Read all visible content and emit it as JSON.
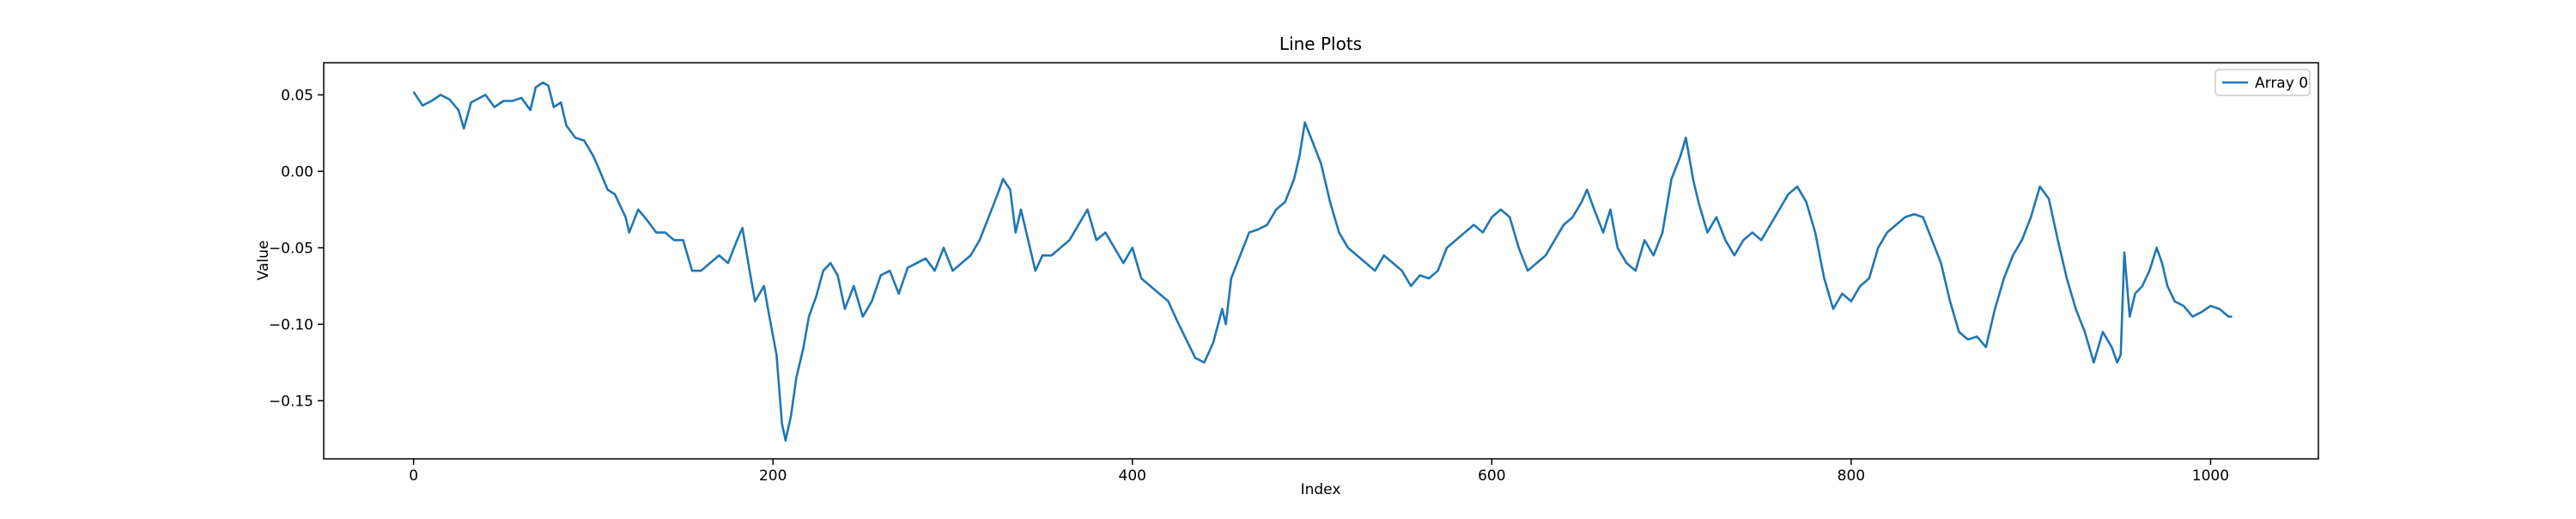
{
  "chart_data": {
    "type": "line",
    "title": "Line Plots",
    "xlabel": "Index",
    "ylabel": "Value",
    "xlim": [
      -50,
      1060
    ],
    "ylim": [
      -0.188,
      0.071
    ],
    "xticks": [
      0,
      200,
      400,
      600,
      800,
      1000
    ],
    "yticks": [
      {
        "value": -0.15,
        "label": "−0.15"
      },
      {
        "value": -0.1,
        "label": "−0.10"
      },
      {
        "value": -0.05,
        "label": "−0.05"
      },
      {
        "value": 0,
        "label": "0.00"
      },
      {
        "value": 0.05,
        "label": "0.05"
      }
    ],
    "legend": "upper right",
    "grid": false,
    "x": [
      0,
      5,
      10,
      15,
      20,
      25,
      28,
      32,
      40,
      45,
      50,
      55,
      60,
      65,
      68,
      72,
      75,
      78,
      82,
      85,
      90,
      95,
      100,
      103,
      108,
      112,
      118,
      120,
      125,
      130,
      135,
      140,
      145,
      150,
      155,
      160,
      165,
      170,
      175,
      180,
      183,
      187,
      190,
      195,
      198,
      202,
      205,
      207,
      210,
      213,
      217,
      220,
      224,
      228,
      232,
      236,
      240,
      245,
      250,
      255,
      260,
      265,
      270,
      275,
      280,
      285,
      290,
      295,
      300,
      305,
      310,
      315,
      320,
      325,
      328,
      332,
      335,
      338,
      342,
      346,
      350,
      355,
      360,
      365,
      370,
      375,
      380,
      385,
      390,
      395,
      400,
      405,
      410,
      415,
      420,
      425,
      430,
      435,
      440,
      445,
      450,
      452,
      455,
      460,
      465,
      470,
      475,
      480,
      485,
      490,
      493,
      496,
      500,
      505,
      510,
      515,
      520,
      525,
      530,
      535,
      540,
      545,
      550,
      555,
      560,
      565,
      570,
      575,
      580,
      585,
      590,
      595,
      600,
      605,
      610,
      615,
      620,
      625,
      630,
      635,
      640,
      645,
      650,
      653,
      657,
      662,
      666,
      670,
      675,
      680,
      685,
      690,
      695,
      700,
      705,
      708,
      712,
      715,
      720,
      725,
      730,
      735,
      740,
      745,
      750,
      755,
      760,
      765,
      770,
      775,
      780,
      785,
      790,
      795,
      800,
      805,
      810,
      815,
      820,
      825,
      830,
      835,
      840,
      845,
      850,
      855,
      860,
      865,
      870,
      875,
      880,
      885,
      890,
      895,
      900,
      905,
      910,
      915,
      920,
      925,
      930,
      935,
      940,
      945,
      948,
      950,
      952,
      955,
      958,
      962,
      966,
      970,
      973,
      976,
      980,
      985,
      990,
      995,
      1000,
      1005,
      1010,
      1012
    ],
    "series": [
      {
        "name": "Array 0",
        "color": "#1f77b4",
        "values": [
          0.052,
          0.043,
          0.046,
          0.05,
          0.047,
          0.04,
          0.028,
          0.045,
          0.05,
          0.042,
          0.046,
          0.046,
          0.048,
          0.04,
          0.055,
          0.058,
          0.056,
          0.042,
          0.045,
          0.03,
          0.022,
          0.02,
          0.01,
          0.002,
          -0.012,
          -0.015,
          -0.03,
          -0.04,
          -0.025,
          -0.032,
          -0.04,
          -0.04,
          -0.045,
          -0.045,
          -0.065,
          -0.065,
          -0.06,
          -0.055,
          -0.06,
          -0.045,
          -0.037,
          -0.065,
          -0.085,
          -0.075,
          -0.095,
          -0.12,
          -0.165,
          -0.176,
          -0.16,
          -0.135,
          -0.115,
          -0.095,
          -0.082,
          -0.065,
          -0.06,
          -0.068,
          -0.09,
          -0.075,
          -0.095,
          -0.085,
          -0.068,
          -0.065,
          -0.08,
          -0.063,
          -0.06,
          -0.057,
          -0.065,
          -0.05,
          -0.065,
          -0.06,
          -0.055,
          -0.045,
          -0.03,
          -0.015,
          -0.005,
          -0.012,
          -0.04,
          -0.025,
          -0.045,
          -0.065,
          -0.055,
          -0.055,
          -0.05,
          -0.045,
          -0.035,
          -0.025,
          -0.045,
          -0.04,
          -0.05,
          -0.06,
          -0.05,
          -0.07,
          -0.075,
          -0.08,
          -0.085,
          -0.098,
          -0.11,
          -0.122,
          -0.125,
          -0.112,
          -0.09,
          -0.1,
          -0.07,
          -0.055,
          -0.04,
          -0.038,
          -0.035,
          -0.025,
          -0.02,
          -0.005,
          0.01,
          0.032,
          0.02,
          0.005,
          -0.02,
          -0.04,
          -0.05,
          -0.055,
          -0.06,
          -0.065,
          -0.055,
          -0.06,
          -0.065,
          -0.075,
          -0.068,
          -0.07,
          -0.065,
          -0.05,
          -0.045,
          -0.04,
          -0.035,
          -0.04,
          -0.03,
          -0.025,
          -0.03,
          -0.05,
          -0.065,
          -0.06,
          -0.055,
          -0.045,
          -0.035,
          -0.03,
          -0.02,
          -0.012,
          -0.025,
          -0.04,
          -0.025,
          -0.05,
          -0.06,
          -0.065,
          -0.045,
          -0.055,
          -0.04,
          -0.005,
          0.01,
          0.022,
          -0.005,
          -0.02,
          -0.04,
          -0.03,
          -0.045,
          -0.055,
          -0.045,
          -0.04,
          -0.045,
          -0.035,
          -0.025,
          -0.015,
          -0.01,
          -0.02,
          -0.04,
          -0.07,
          -0.09,
          -0.08,
          -0.085,
          -0.075,
          -0.07,
          -0.05,
          -0.04,
          -0.035,
          -0.03,
          -0.028,
          -0.03,
          -0.045,
          -0.06,
          -0.085,
          -0.105,
          -0.11,
          -0.108,
          -0.115,
          -0.09,
          -0.07,
          -0.055,
          -0.045,
          -0.03,
          -0.01,
          -0.018,
          -0.045,
          -0.07,
          -0.09,
          -0.105,
          -0.125,
          -0.105,
          -0.115,
          -0.125,
          -0.12,
          -0.053,
          -0.095,
          -0.08,
          -0.075,
          -0.065,
          -0.05,
          -0.06,
          -0.075,
          -0.085,
          -0.088,
          -0.095,
          -0.092,
          -0.088,
          -0.09,
          -0.095,
          -0.095
        ]
      }
    ]
  }
}
